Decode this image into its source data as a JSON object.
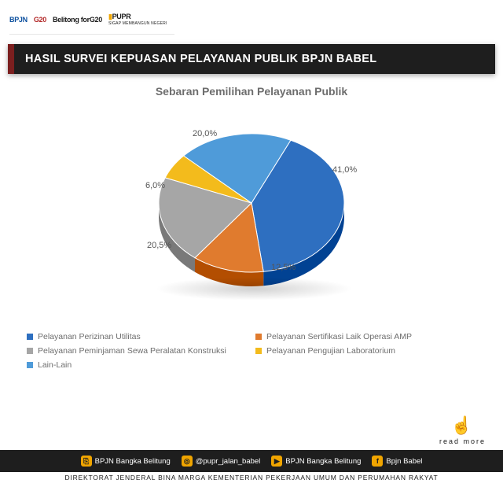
{
  "header": {
    "logos": {
      "bpjn": "BPJN",
      "g20a": "G20",
      "g20b": "Belitong forG20",
      "pupr": "PUPR",
      "pupr_sub": "SIGAP MEMBANGUN NEGERI"
    }
  },
  "title_bar": {
    "accent_color": "#7b1f1f",
    "bg_color": "#1e1e1e",
    "text": "HASIL SURVEI KEPUASAN PELAYANAN PUBLIK BPJN BABEL",
    "text_color": "#ffffff"
  },
  "chart": {
    "type": "pie",
    "title": "Sebaran Pemilihan Pelayanan Publik",
    "title_color": "#6d6d6d",
    "title_fontsize": 14,
    "background_color": "#ffffff",
    "label_color": "#555555",
    "label_fontsize": 11,
    "tilt_3d": true,
    "slices": [
      {
        "label": "Pelayanan Perizinan Utilitas",
        "value": 41.0,
        "display": "41,0%",
        "color": "#2e6fc0"
      },
      {
        "label": "Pelayanan Sertifikasi Laik Operasi AMP",
        "value": 12.5,
        "display": "12,5%",
        "color": "#e07b2e"
      },
      {
        "label": "Pelayanan Peminjaman Sewa Peralatan Konstruksi",
        "value": 20.5,
        "display": "20,5%",
        "color": "#a6a6a6"
      },
      {
        "label": "Pelayanan Pengujian Laboratorium",
        "value": 6.0,
        "display": "6,0%",
        "color": "#f3bb1c"
      },
      {
        "label": "Lain-Lain",
        "value": 20.0,
        "display": "20,0%",
        "color": "#4f9bd9"
      }
    ],
    "legend_bullet": "■",
    "legend_color": "#6d6d6d",
    "legend_fontsize": 10.5
  },
  "read_more": {
    "label": "read more",
    "icon": "☝"
  },
  "social": {
    "bg_color": "#1e1e1e",
    "icon_bg": "#f0a500",
    "items": [
      {
        "icon": "⎘",
        "label": "BPJN Bangka Belitung"
      },
      {
        "icon": "◎",
        "label": "@pupr_jalan_babel"
      },
      {
        "icon": "▶",
        "label": "BPJN Bangka Belitung"
      },
      {
        "icon": "f",
        "label": "Bpjn Babel"
      }
    ]
  },
  "footer": {
    "text": "DIREKTORAT JENDERAL BINA MARGA KEMENTERIAN PEKERJAAN UMUM DAN PERUMAHAN RAKYAT",
    "color": "#1a1a1a"
  }
}
